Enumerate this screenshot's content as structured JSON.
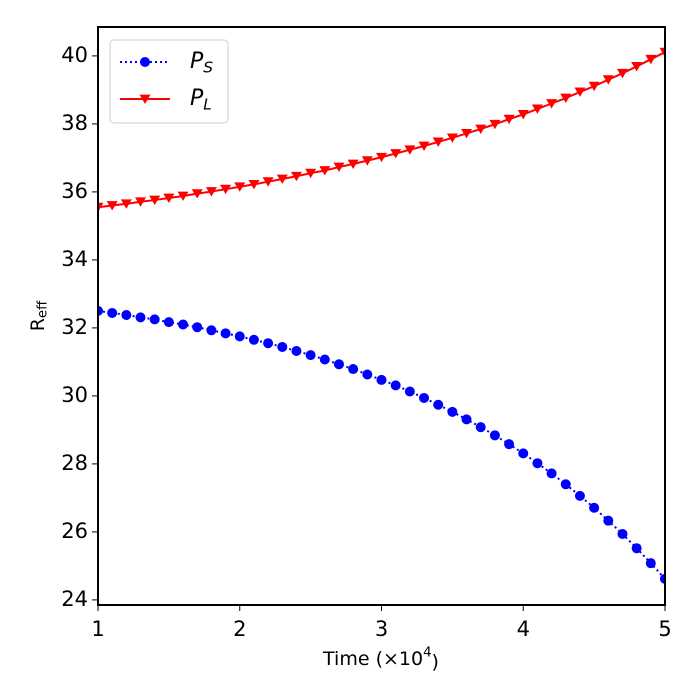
{
  "chart_data": {
    "type": "line",
    "xlabel": "Time (×10^4)",
    "ylabel": "R_eff",
    "x": [
      1.0,
      1.1,
      1.2,
      1.3,
      1.4,
      1.5,
      1.6,
      1.7,
      1.8,
      1.9,
      2.0,
      2.1,
      2.2,
      2.3,
      2.4,
      2.5,
      2.6,
      2.7,
      2.8,
      2.9,
      3.0,
      3.1,
      3.2,
      3.3,
      3.4,
      3.5,
      3.6,
      3.7,
      3.8,
      3.9,
      4.0,
      4.1,
      4.2,
      4.3,
      4.4,
      4.5,
      4.6,
      4.7,
      4.8,
      4.9,
      5.0
    ],
    "series": [
      {
        "name": "P_S",
        "color": "#0000ff",
        "linestyle": "dotted",
        "marker": "circle",
        "values": [
          32.5,
          32.44,
          32.38,
          32.31,
          32.25,
          32.17,
          32.1,
          32.02,
          31.93,
          31.84,
          31.75,
          31.65,
          31.55,
          31.44,
          31.32,
          31.2,
          31.07,
          30.93,
          30.79,
          30.63,
          30.47,
          30.31,
          30.13,
          29.94,
          29.74,
          29.53,
          29.31,
          29.08,
          28.84,
          28.58,
          28.31,
          28.02,
          27.72,
          27.4,
          27.06,
          26.71,
          26.33,
          25.94,
          25.52,
          25.08,
          24.62
        ]
      },
      {
        "name": "P_L",
        "color": "#ff0000",
        "linestyle": "solid",
        "marker": "triangle-down",
        "values": [
          35.55,
          35.6,
          35.65,
          35.71,
          35.76,
          35.82,
          35.88,
          35.95,
          36.01,
          36.08,
          36.15,
          36.22,
          36.3,
          36.38,
          36.46,
          36.55,
          36.63,
          36.73,
          36.82,
          36.92,
          37.02,
          37.13,
          37.24,
          37.35,
          37.47,
          37.59,
          37.72,
          37.85,
          37.99,
          38.14,
          38.28,
          38.44,
          38.6,
          38.76,
          38.94,
          39.11,
          39.3,
          39.49,
          39.69,
          39.9,
          40.11
        ]
      }
    ],
    "xlim": [
      1,
      5
    ],
    "xticks": [
      1,
      2,
      3,
      4,
      5
    ],
    "ylim": [
      23.85,
      40.85
    ],
    "yticks": [
      24,
      26,
      28,
      30,
      32,
      34,
      36,
      38,
      40
    ],
    "grid": false,
    "legend": "upper left"
  }
}
